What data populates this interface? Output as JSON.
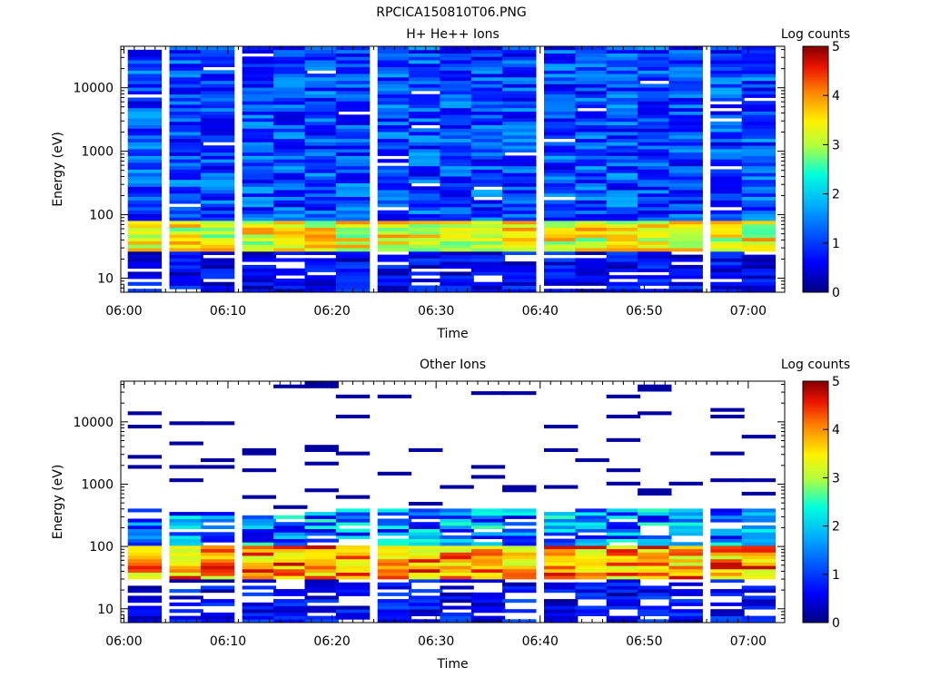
{
  "figure_title": "RPCICA150810T06.PNG",
  "chart_data": [
    {
      "type": "heatmap",
      "title": "H+ He++ Ions",
      "xlabel": "Time",
      "ylabel": "Energy (eV)",
      "x_ticks": [
        "06:00",
        "06:10",
        "06:20",
        "06:30",
        "06:40",
        "06:50",
        "07:00"
      ],
      "y_ticks": [
        "10",
        "100",
        "1000",
        "10000"
      ],
      "y_scale": "log",
      "ylim": [
        6,
        45000
      ],
      "colorbar": {
        "label": "Log counts",
        "ticks": [
          "0",
          "1",
          "2",
          "3",
          "4",
          "5"
        ],
        "range": [
          0,
          5
        ],
        "colormap": "rainbow"
      },
      "time_columns": [
        "06:02",
        "06:06",
        "06:09",
        "06:13",
        "06:16",
        "06:19",
        "06:22",
        "06:26",
        "06:29",
        "06:32",
        "06:35",
        "06:38",
        "06:42",
        "06:45",
        "06:48",
        "06:51",
        "06:54",
        "06:58",
        "07:01"
      ],
      "features": [
        {
          "energy_range_eV": [
            25,
            80
          ],
          "log_counts_range": [
            2.5,
            4.2
          ],
          "description_level": "peak"
        },
        {
          "energy_range_eV": [
            100,
            40000
          ],
          "log_counts_range": [
            0.5,
            1.8
          ],
          "description_level": "background"
        },
        {
          "energy_range_eV": [
            6,
            25
          ],
          "log_counts_range": [
            0.1,
            1.0
          ],
          "description_level": "low"
        }
      ]
    },
    {
      "type": "heatmap",
      "title": "Other Ions",
      "xlabel": "Time",
      "ylabel": "Energy (eV)",
      "x_ticks": [
        "06:00",
        "06:10",
        "06:20",
        "06:30",
        "06:40",
        "06:50",
        "07:00"
      ],
      "y_ticks": [
        "10",
        "100",
        "1000",
        "10000"
      ],
      "y_scale": "log",
      "ylim": [
        6,
        45000
      ],
      "colorbar": {
        "label": "Log counts",
        "ticks": [
          "0",
          "1",
          "2",
          "3",
          "4",
          "5"
        ],
        "range": [
          0,
          5
        ],
        "colormap": "rainbow"
      },
      "time_columns": [
        "06:02",
        "06:06",
        "06:09",
        "06:13",
        "06:16",
        "06:19",
        "06:22",
        "06:26",
        "06:29",
        "06:32",
        "06:35",
        "06:38",
        "06:42",
        "06:45",
        "06:48",
        "06:51",
        "06:54",
        "06:58",
        "07:01"
      ],
      "features": [
        {
          "energy_range_eV": [
            30,
            100
          ],
          "log_counts_range": [
            3.0,
            4.8
          ],
          "description_level": "peak"
        },
        {
          "energy_range_eV": [
            100,
            400
          ],
          "log_counts_range": [
            0.5,
            2.5
          ],
          "description_level": "shoulder"
        },
        {
          "energy_range_eV": [
            400,
            40000
          ],
          "log_counts_range": [
            0.1,
            0.3
          ],
          "description_level": "sparse"
        }
      ]
    }
  ]
}
